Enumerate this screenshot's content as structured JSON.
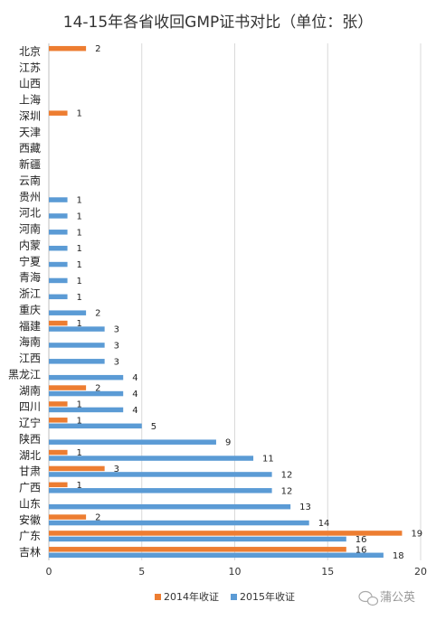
{
  "chart_data": {
    "type": "bar",
    "orientation": "horizontal",
    "title": "14-15年各省收回GMP证书对比（单位：张）",
    "categories": [
      "北京",
      "江苏",
      "山西",
      "上海",
      "深圳",
      "天津",
      "西藏",
      "新疆",
      "云南",
      "贵州",
      "河北",
      "河南",
      "内蒙",
      "宁夏",
      "青海",
      "浙江",
      "重庆",
      "福建",
      "海南",
      "江西",
      "黑龙江",
      "湖南",
      "四川",
      "辽宁",
      "陕西",
      "湖北",
      "甘肃",
      "广西",
      "山东",
      "安徽",
      "广东",
      "吉林"
    ],
    "series": [
      {
        "name": "2014年收证",
        "color": "#ED7D31",
        "values": [
          2,
          null,
          null,
          null,
          1,
          null,
          null,
          null,
          null,
          null,
          null,
          null,
          null,
          null,
          null,
          null,
          null,
          1,
          null,
          null,
          null,
          2,
          1,
          1,
          null,
          1,
          3,
          1,
          null,
          2,
          19,
          16
        ]
      },
      {
        "name": "2015年收证",
        "color": "#5B9BD5",
        "values": [
          null,
          null,
          null,
          null,
          null,
          null,
          null,
          null,
          null,
          1,
          1,
          1,
          1,
          1,
          1,
          1,
          2,
          3,
          3,
          3,
          4,
          4,
          4,
          5,
          9,
          11,
          12,
          12,
          13,
          14,
          16,
          18
        ]
      }
    ],
    "xlim": [
      0,
      20
    ],
    "xticks": [
      "0",
      "5",
      "10",
      "15",
      "20"
    ],
    "grid": true,
    "legend_position": "bottom"
  },
  "watermark": {
    "text": "蒲公英"
  }
}
